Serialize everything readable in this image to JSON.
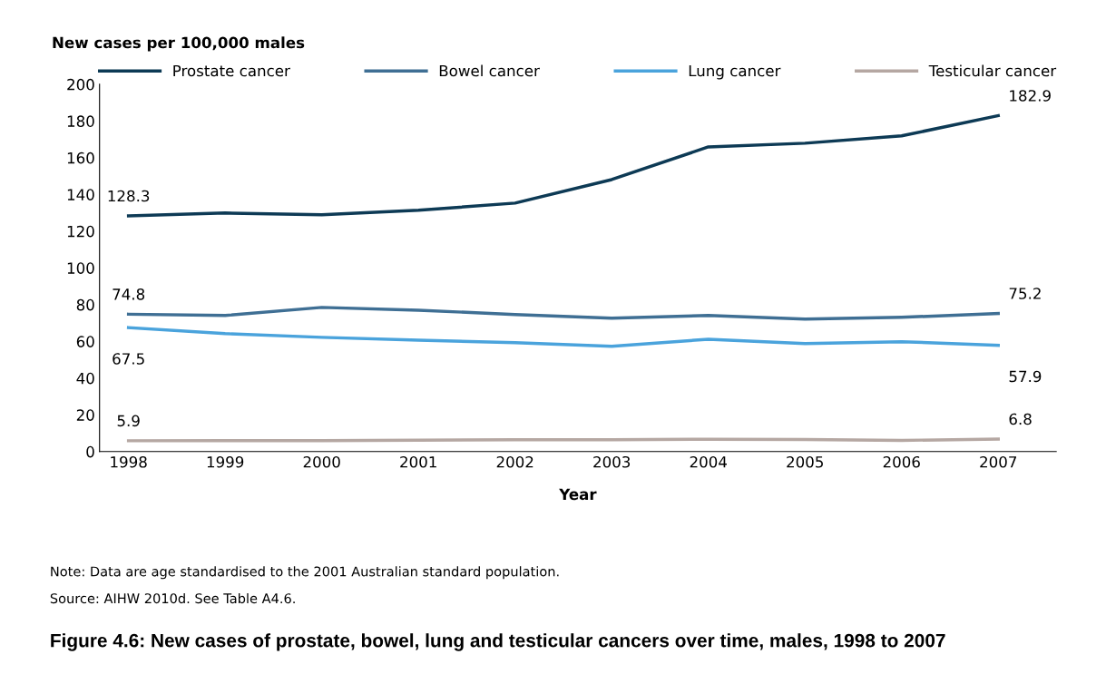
{
  "chart_data": {
    "type": "line",
    "title": "Figure 4.6: New cases of prostate, bowel, lung and testicular cancers over time, males, 1998 to 2007",
    "xlabel": "Year",
    "ylabel": "New cases per 100,000 males",
    "categories": [
      "1998",
      "1999",
      "2000",
      "2001",
      "2002",
      "2003",
      "2004",
      "2005",
      "2006",
      "2007"
    ],
    "series": [
      {
        "name": "Prostate cancer",
        "color": "#0d3a55",
        "values": [
          128.3,
          129.9,
          128.9,
          131.4,
          135.3,
          148.1,
          165.9,
          167.9,
          171.9,
          182.9
        ]
      },
      {
        "name": "Bowel cancer",
        "color": "#3f6f94",
        "values": [
          74.8,
          74.1,
          78.5,
          77.0,
          74.6,
          72.6,
          74.1,
          72.1,
          73.1,
          75.2
        ]
      },
      {
        "name": "Lung cancer",
        "color": "#4aa3dc",
        "values": [
          67.5,
          64.2,
          62.2,
          60.7,
          59.3,
          57.3,
          61.2,
          58.8,
          59.8,
          57.9
        ]
      },
      {
        "name": "Testicular cancer",
        "color": "#b5a7a2",
        "values": [
          5.9,
          6.0,
          6.0,
          6.2,
          6.5,
          6.4,
          6.7,
          6.6,
          6.1,
          6.8
        ]
      }
    ],
    "ylim": [
      0,
      200
    ],
    "yticks": [
      0,
      20,
      40,
      60,
      80,
      100,
      120,
      140,
      160,
      180,
      200
    ],
    "legend": "top",
    "grid": false,
    "marker": "none",
    "line_style": "solid",
    "annotations": [
      {
        "text": "128.3",
        "x": "1998",
        "y": 128.3
      },
      {
        "text": "182.9",
        "x": "2007",
        "y": 182.9
      },
      {
        "text": "74.8",
        "x": "1998",
        "y": 74.8
      },
      {
        "text": "75.2",
        "x": "2007",
        "y": 75.2
      },
      {
        "text": "67.5",
        "x": "1998",
        "y": 67.5
      },
      {
        "text": "57.9",
        "x": "2007",
        "y": 57.9
      },
      {
        "text": "5.9",
        "x": "1998",
        "y": 5.9
      },
      {
        "text": "6.8",
        "x": "2007",
        "y": 6.8
      },
      "Note: Data are age standardised to the 2001 Australian standard population.",
      "Source: AIHW 2010d. See Table A4.6."
    ]
  }
}
